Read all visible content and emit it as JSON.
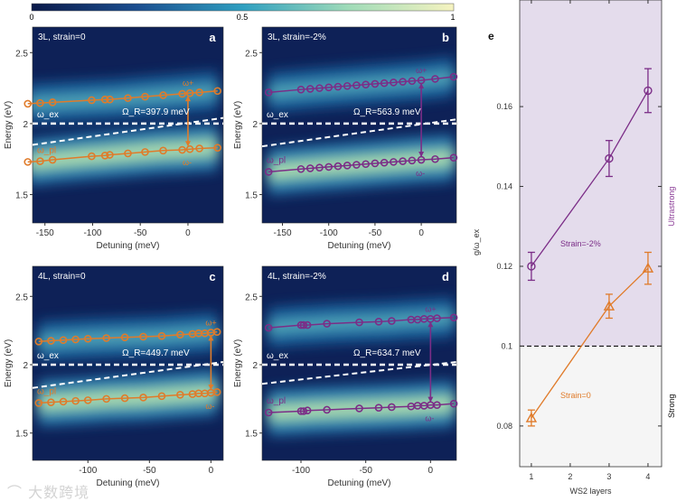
{
  "colorbar": {
    "labels": [
      "0",
      "0.5",
      "1"
    ]
  },
  "watermark": "大数跨境",
  "chart_data": [
    {
      "panel": "a",
      "type": "heatmap",
      "title": "3L, strain=0",
      "xlabel": "Detuning (meV)",
      "ylabel": "Energy (eV)",
      "xlim": [
        -163,
        37
      ],
      "ylim": [
        1.3,
        2.68
      ],
      "xticks": [
        -150,
        -100,
        -50,
        0
      ],
      "xtick_labels": [
        "-150",
        "-100",
        "-50",
        "0"
      ],
      "yticks": [
        1.5,
        2,
        2.5
      ],
      "ytick_labels": [
        "1.5",
        "2",
        "2.5"
      ],
      "color": "#e07b2a",
      "rabi_label": "Ω_R=397.9 meV",
      "exciton_label": "ω_ex",
      "photon_label": "ω_pl",
      "upper_label": "ω+",
      "lower_label": "ω-",
      "exciton_energy": 2.0,
      "photon_line": [
        [
          -163,
          1.85
        ],
        [
          37,
          2.04
        ]
      ],
      "rabi_at": 0,
      "detuning": [
        -168,
        -155,
        -142,
        -101,
        -87,
        -82,
        -63,
        -45,
        -26,
        -6,
        2,
        12,
        31
      ],
      "upper": [
        2.14,
        2.145,
        2.15,
        2.165,
        2.17,
        2.17,
        2.18,
        2.19,
        2.2,
        2.21,
        2.215,
        2.22,
        2.23
      ],
      "lower": [
        1.73,
        1.735,
        1.745,
        1.77,
        1.775,
        1.78,
        1.79,
        1.8,
        1.81,
        1.815,
        1.82,
        1.825,
        1.83
      ]
    },
    {
      "panel": "b",
      "type": "heatmap",
      "title": "3L, strain=-2%",
      "xlabel": "Detuning (meV)",
      "ylabel": "Energy (eV)",
      "xlim": [
        -172,
        38
      ],
      "ylim": [
        1.3,
        2.68
      ],
      "xticks": [
        -150,
        -100,
        -50,
        0
      ],
      "xtick_labels": [
        "-150",
        "-100",
        "-50",
        "0"
      ],
      "yticks": [
        1.5,
        2,
        2.5
      ],
      "ytick_labels": [
        "1.5",
        "2",
        "2.5"
      ],
      "color": "#7b2d87",
      "rabi_label": "Ω_R=563.9 meV",
      "exciton_label": "ω_ex",
      "photon_label": "ω_pl",
      "upper_label": "ω+",
      "lower_label": "ω-",
      "exciton_energy": 2.0,
      "photon_line": [
        [
          -172,
          1.84
        ],
        [
          38,
          2.03
        ]
      ],
      "rabi_at": 0,
      "detuning": [
        -165,
        -130,
        -120,
        -110,
        -100,
        -90,
        -80,
        -70,
        -60,
        -50,
        -40,
        -30,
        -20,
        -10,
        0,
        15,
        35
      ],
      "upper": [
        2.22,
        2.24,
        2.245,
        2.25,
        2.255,
        2.26,
        2.265,
        2.27,
        2.275,
        2.28,
        2.285,
        2.29,
        2.295,
        2.3,
        2.305,
        2.315,
        2.33
      ],
      "lower": [
        1.66,
        1.68,
        1.685,
        1.69,
        1.695,
        1.7,
        1.705,
        1.71,
        1.715,
        1.72,
        1.725,
        1.73,
        1.735,
        1.74,
        1.745,
        1.75,
        1.76
      ]
    },
    {
      "panel": "c",
      "type": "heatmap",
      "title": "4L, strain=0",
      "xlabel": "Detuning (meV)",
      "ylabel": "Energy (eV)",
      "xlim": [
        -145,
        10
      ],
      "ylim": [
        1.3,
        2.72
      ],
      "xticks": [
        -100,
        -50,
        0
      ],
      "xtick_labels": [
        "-100",
        "-50",
        "0"
      ],
      "yticks": [
        1.5,
        2,
        2.5
      ],
      "ytick_labels": [
        "1.5",
        "2",
        "2.5"
      ],
      "color": "#e07b2a",
      "rabi_label": "Ω_R=449.7 meV",
      "exciton_label": "ω_ex",
      "photon_label": "ω_pl",
      "upper_label": "ω+",
      "lower_label": "ω-",
      "exciton_energy": 2.0,
      "photon_line": [
        [
          -145,
          1.83
        ],
        [
          10,
          2.02
        ]
      ],
      "rabi_at": 0,
      "detuning": [
        -140,
        -130,
        -120,
        -110,
        -100,
        -85,
        -70,
        -55,
        -40,
        -25,
        -15,
        -10,
        -5,
        0,
        5
      ],
      "upper": [
        2.17,
        2.175,
        2.18,
        2.185,
        2.19,
        2.195,
        2.2,
        2.205,
        2.21,
        2.22,
        2.225,
        2.23,
        2.23,
        2.235,
        2.24
      ],
      "lower": [
        1.72,
        1.725,
        1.73,
        1.735,
        1.74,
        1.75,
        1.755,
        1.76,
        1.77,
        1.78,
        1.785,
        1.79,
        1.79,
        1.795,
        1.8
      ]
    },
    {
      "panel": "d",
      "type": "heatmap",
      "title": "4L, strain=-2%",
      "xlabel": "Detuning (meV)",
      "ylabel": "Energy (eV)",
      "xlim": [
        -130,
        20
      ],
      "ylim": [
        1.3,
        2.72
      ],
      "xticks": [
        -100,
        -50,
        0
      ],
      "xtick_labels": [
        "-100",
        "-50",
        "0"
      ],
      "yticks": [
        1.5,
        2,
        2.5
      ],
      "ytick_labels": [
        "1.5",
        "2",
        "2.5"
      ],
      "color": "#7b2d87",
      "rabi_label": "Ω_R=634.7 meV",
      "exciton_label": "ω_ex",
      "photon_label": "ω_pl",
      "upper_label": "ω+",
      "lower_label": "ω-",
      "exciton_energy": 2.0,
      "photon_line": [
        [
          -130,
          1.86
        ],
        [
          20,
          2.02
        ]
      ],
      "rabi_at": 0,
      "detuning": [
        -125,
        -100,
        -98,
        -95,
        -80,
        -55,
        -40,
        -30,
        -15,
        -10,
        -5,
        0,
        5,
        18
      ],
      "upper": [
        2.27,
        2.29,
        2.29,
        2.29,
        2.3,
        2.31,
        2.315,
        2.32,
        2.33,
        2.33,
        2.335,
        2.335,
        2.34,
        2.345
      ],
      "lower": [
        1.65,
        1.66,
        1.66,
        1.665,
        1.67,
        1.68,
        1.685,
        1.69,
        1.695,
        1.7,
        1.7,
        1.705,
        1.705,
        1.715
      ]
    },
    {
      "panel": "e",
      "type": "line",
      "xlabel": "WS2 layers",
      "ylabel": "g/ω_ex",
      "xlim": [
        0.7,
        4.35
      ],
      "ylim": [
        0.0698,
        0.1867
      ],
      "xticks": [
        1,
        2,
        3,
        4
      ],
      "xtick_labels": [
        "1",
        "2",
        "3",
        "4"
      ],
      "yticks": [
        0.08,
        0.1,
        0.12,
        0.14,
        0.16
      ],
      "ytick_labels": [
        "0.08",
        "0.1",
        "0.12",
        "0.14",
        "0.16"
      ],
      "threshold": 0.1,
      "regions": [
        "Ultrastrong",
        "Strong"
      ],
      "series": [
        {
          "name": "Strain=-2%",
          "color": "#7b2d87",
          "marker": "circle",
          "x": [
            1,
            3,
            4
          ],
          "values": [
            0.12,
            0.147,
            0.164
          ],
          "errors": [
            0.0035,
            0.0045,
            0.0055
          ]
        },
        {
          "name": "Strain=0",
          "color": "#e07b2a",
          "marker": "triangle",
          "x": [
            1,
            3,
            4
          ],
          "values": [
            0.082,
            0.11,
            0.1195
          ],
          "errors": [
            0.002,
            0.003,
            0.004
          ]
        }
      ]
    }
  ]
}
